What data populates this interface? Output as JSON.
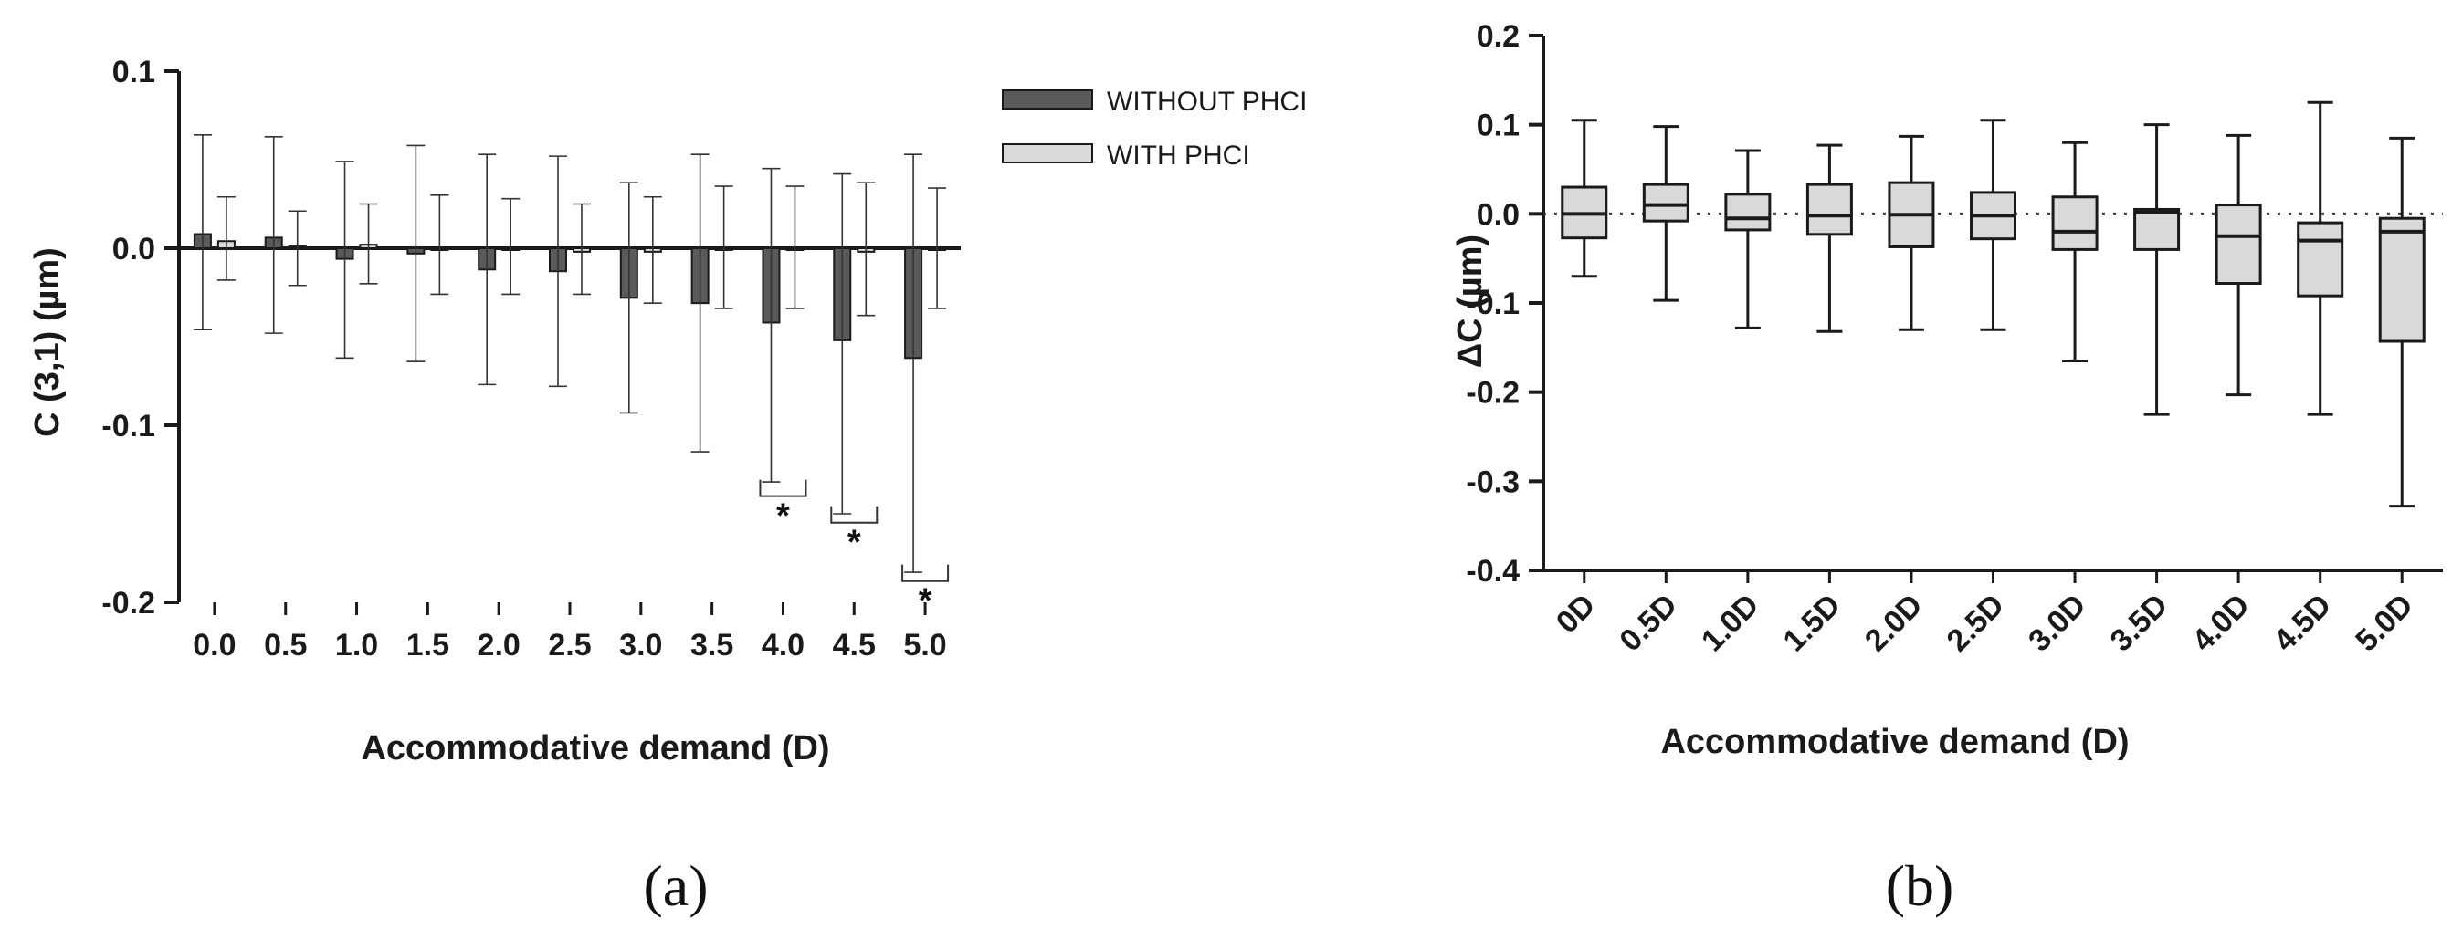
{
  "panel_labels": [
    "(a)",
    "(b)"
  ],
  "colors": {
    "without": "#5a5a5a",
    "with": "#d9d9d9",
    "axis": "#1a1a1a"
  },
  "chart_data": [
    {
      "type": "bar",
      "xlabel": "Accommodative demand (D)",
      "ylabel": "C (3,1) (µm)",
      "ylim": [
        -0.2,
        0.1
      ],
      "yticks": [
        "0.1",
        "0.0",
        "-0.1",
        "-0.2"
      ],
      "ytick_values": [
        0.1,
        0.0,
        -0.1,
        -0.2
      ],
      "categories": [
        "0.0",
        "0.5",
        "1.0",
        "1.5",
        "2.0",
        "2.5",
        "3.0",
        "3.5",
        "4.0",
        "4.5",
        "5.0"
      ],
      "legend_position": "top-right",
      "series": [
        {
          "name": "WITHOUT PHCI",
          "values": [
            0.008,
            0.006,
            -0.006,
            -0.003,
            -0.012,
            -0.013,
            -0.028,
            -0.031,
            -0.042,
            -0.052,
            -0.062
          ],
          "err_upper": [
            0.064,
            0.063,
            0.049,
            0.058,
            0.053,
            0.052,
            0.037,
            0.053,
            0.045,
            0.042,
            0.053
          ],
          "err_lower": [
            -0.046,
            -0.048,
            -0.062,
            -0.064,
            -0.077,
            -0.078,
            -0.093,
            -0.115,
            -0.132,
            -0.15,
            -0.183
          ]
        },
        {
          "name": "WITH PHCI",
          "values": [
            0.004,
            0.001,
            0.002,
            0.0,
            -0.001,
            -0.002,
            -0.002,
            -0.001,
            -0.001,
            -0.002,
            -0.001
          ],
          "err_upper": [
            0.029,
            0.021,
            0.025,
            0.03,
            0.028,
            0.025,
            0.029,
            0.035,
            0.035,
            0.037,
            0.034
          ],
          "err_lower": [
            -0.018,
            -0.021,
            -0.02,
            -0.026,
            -0.026,
            -0.026,
            -0.031,
            -0.034,
            -0.034,
            -0.038,
            -0.034
          ]
        }
      ],
      "significance": [
        {
          "category": "4.0",
          "label": "*",
          "y": -0.14
        },
        {
          "category": "4.5",
          "label": "*",
          "y": -0.155
        },
        {
          "category": "5.0",
          "label": "*",
          "y": -0.188
        }
      ]
    },
    {
      "type": "box",
      "xlabel": "Accommodative demand (D)",
      "ylabel": "ΔC (µm)",
      "ylim": [
        -0.4,
        0.2
      ],
      "yticks": [
        "0.2",
        "0.1",
        "0.0",
        "-0.1",
        "-0.2",
        "-0.3",
        "-0.4"
      ],
      "ytick_values": [
        0.2,
        0.1,
        0.0,
        -0.1,
        -0.2,
        -0.3,
        -0.4
      ],
      "categories": [
        "0D",
        "0.5D",
        "1.0D",
        "1.5D",
        "2.0D",
        "2.5D",
        "3.0D",
        "3.5D",
        "4.0D",
        "4.5D",
        "5.0D"
      ],
      "reference_line": 0.0,
      "boxes": [
        {
          "min": -0.07,
          "q1": -0.027,
          "median": 0.0,
          "q3": 0.03,
          "max": 0.105
        },
        {
          "min": -0.097,
          "q1": -0.008,
          "median": 0.01,
          "q3": 0.033,
          "max": 0.098
        },
        {
          "min": -0.128,
          "q1": -0.018,
          "median": -0.005,
          "q3": 0.022,
          "max": 0.071
        },
        {
          "min": -0.132,
          "q1": -0.023,
          "median": -0.002,
          "q3": 0.033,
          "max": 0.077
        },
        {
          "min": -0.13,
          "q1": -0.037,
          "median": -0.001,
          "q3": 0.035,
          "max": 0.087
        },
        {
          "min": -0.13,
          "q1": -0.028,
          "median": -0.002,
          "q3": 0.024,
          "max": 0.105
        },
        {
          "min": -0.165,
          "q1": -0.04,
          "median": -0.02,
          "q3": 0.019,
          "max": 0.08
        },
        {
          "min": -0.225,
          "q1": -0.04,
          "median": 0.002,
          "q3": 0.005,
          "max": 0.1
        },
        {
          "min": -0.203,
          "q1": -0.078,
          "median": -0.025,
          "q3": 0.01,
          "max": 0.088
        },
        {
          "min": -0.225,
          "q1": -0.092,
          "median": -0.03,
          "q3": -0.01,
          "max": 0.125
        },
        {
          "min": -0.328,
          "q1": -0.143,
          "median": -0.02,
          "q3": -0.005,
          "max": 0.085
        }
      ]
    }
  ]
}
